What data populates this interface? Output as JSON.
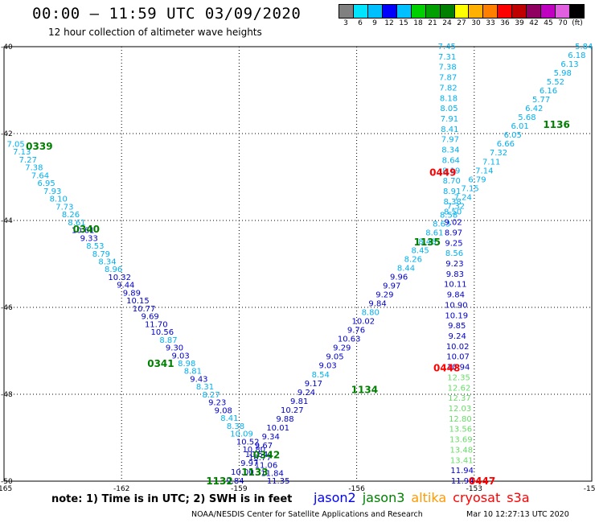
{
  "header": {
    "title": "00:00 – 11:59 UTC 03/09/2020",
    "subtitle": "12 hour collection of altimeter wave heights"
  },
  "colorbar": {
    "colors": [
      "#808080",
      "#00e5ff",
      "#00bfff",
      "#0000ff",
      "#00c0ff",
      "#00d000",
      "#00a000",
      "#008000",
      "#ffff00",
      "#ffb000",
      "#ff8000",
      "#ff0000",
      "#c00000",
      "#900060",
      "#c000c0",
      "#e060e0",
      "#000000"
    ],
    "labels": [
      "3",
      "6",
      "9",
      "12",
      "15",
      "18",
      "21",
      "24",
      "27",
      "30",
      "33",
      "36",
      "39",
      "42",
      "45",
      "70",
      "(ft)"
    ]
  },
  "map": {
    "lat_labels": [
      "-40",
      "-42",
      "-44",
      "-46",
      "-48",
      "-50"
    ],
    "lon_labels": [
      "-165",
      "-162",
      "-159",
      "-156",
      "-153",
      "-150"
    ]
  },
  "passes": [
    {
      "label": "0339",
      "color": "#008000",
      "lat": -42.3,
      "lon": -164.1
    },
    {
      "label": "0340",
      "color": "#008000",
      "lat": -44.2,
      "lon": -162.9
    },
    {
      "label": "0341",
      "color": "#008000",
      "lat": -47.3,
      "lon": -161.0
    },
    {
      "label": "0342",
      "color": "#008000",
      "lat": -49.4,
      "lon": -158.3
    },
    {
      "label": "1133",
      "color": "#008000",
      "lat": -49.8,
      "lon": -158.6
    },
    {
      "label": "1132",
      "color": "#008000",
      "lat": -50.0,
      "lon": -159.5
    },
    {
      "label": "1134",
      "color": "#008000",
      "lat": -47.9,
      "lon": -155.8
    },
    {
      "label": "1135",
      "color": "#008000",
      "lat": -44.5,
      "lon": -154.2
    },
    {
      "label": "1136",
      "color": "#008000",
      "lat": -41.8,
      "lon": -150.9
    },
    {
      "label": "0449",
      "color": "#ff0000",
      "lat": -42.9,
      "lon": -153.8
    },
    {
      "label": "0448",
      "color": "#ff0000",
      "lat": -47.4,
      "lon": -153.7
    },
    {
      "label": "0447",
      "color": "#ff0000",
      "lat": -50.0,
      "lon": -152.8
    }
  ],
  "tracks": [
    {
      "name": "jason3-0339-0342",
      "color_a": "#00b0f0",
      "color_b": "#0000cc",
      "start": [
        -164.7,
        -42.25
      ],
      "end": [
        -158.0,
        -50.0
      ],
      "values": [
        "7.05",
        "7.13",
        "7.27",
        "7.38",
        "7.64",
        "6.95",
        "7.93",
        "8.10",
        "7.73",
        "8.26",
        "8.61",
        "10.61",
        "9.33",
        "8.53",
        "8.79",
        "8.34",
        "8.96",
        "10.32",
        "9.44",
        "9.89",
        "10.15",
        "10.77",
        "9.69",
        "11.70",
        "10.56",
        "8.87",
        "9.30",
        "9.03",
        "8.98",
        "8.81",
        "9.43",
        "8.31",
        "8.27",
        "9.23",
        "9.08",
        "8.41",
        "8.38",
        "10.09",
        "10.52",
        "10.80",
        "10.77",
        "11.06",
        "11.84",
        "11.35"
      ],
      "blue_idx": [
        11,
        12,
        17,
        18,
        19,
        20,
        21,
        22,
        23,
        24,
        26,
        27,
        30,
        33,
        34,
        38,
        39,
        40,
        41,
        42,
        43
      ]
    },
    {
      "name": "jason3-1132-1136",
      "color_a": "#0000cc",
      "color_b": "#00b0f0",
      "start": [
        -159.1,
        -50.0
      ],
      "end": [
        -150.2,
        -40.0
      ],
      "values": [
        "9.84",
        "10.00",
        "9.97",
        "10.54",
        "9.67",
        "9.34",
        "10.01",
        "9.88",
        "10.27",
        "9.81",
        "9.24",
        "9.17",
        "8.54",
        "9.03",
        "9.05",
        "9.29",
        "10.63",
        "9.76",
        "10.02",
        "8.80",
        "9.84",
        "9.29",
        "9.97",
        "9.96",
        "8.44",
        "8.26",
        "8.45",
        "8.48",
        "8.61",
        "8.63",
        "8.58",
        "7.32",
        "7.24",
        "7.15",
        "6.79",
        "7.14",
        "7.11",
        "7.32",
        "6.66",
        "6.05",
        "6.01",
        "5.68",
        "6.42",
        "5.77",
        "6.16",
        "5.52",
        "5.98",
        "6.13",
        "6.18",
        "5.84"
      ],
      "blue_idx": [
        0,
        1,
        2,
        3,
        4,
        5,
        6,
        7,
        8,
        9,
        10,
        11,
        13,
        14,
        15,
        16,
        17,
        18,
        20,
        21,
        22,
        23
      ]
    },
    {
      "name": "s3a-0447-0449",
      "color_a": "#0000cc",
      "color_b": "#00b0f0",
      "start": [
        -153.3,
        -50.0
      ],
      "end": [
        -153.7,
        -40.0
      ],
      "values": [
        "11.94",
        "11.94",
        "13.41",
        "13.48",
        "13.69",
        "13.56",
        "12.80",
        "12.03",
        "12.37",
        "12.62",
        "12.35",
        "10.94",
        "10.07",
        "10.02",
        "9.24",
        "9.85",
        "10.19",
        "10.90",
        "9.84",
        "10.11",
        "9.83",
        "9.23",
        "8.56",
        "9.25",
        "8.97",
        "9.02",
        "8.50",
        "8.38",
        "8.91",
        "8.70",
        "8.19",
        "8.64",
        "8.34",
        "7.97",
        "8.41",
        "7.91",
        "8.05",
        "8.18",
        "7.82",
        "7.87",
        "7.38",
        "7.31",
        "7.45"
      ],
      "green_range": [
        2,
        10
      ],
      "blue_idx": [
        0,
        1,
        11,
        12,
        13,
        14,
        15,
        16,
        17,
        18,
        19,
        20,
        21,
        23,
        24,
        25
      ]
    }
  ],
  "footer": {
    "note": "note: 1) Time is in UTC; 2) SWH is in feet",
    "legend": [
      {
        "name": "jason2",
        "color": "#0000ff"
      },
      {
        "name": "jason3",
        "color": "#008000"
      },
      {
        "name": "altika",
        "color": "#ff9900"
      },
      {
        "name": "cryosat",
        "color": "#ff0000"
      },
      {
        "name": "s3a",
        "color": "#ff0000"
      }
    ],
    "credit": "NOAA/NESDIS Center for Satellite Applications and Research",
    "timestamp": "Mar 10 12:27:13 UTC 2020"
  }
}
